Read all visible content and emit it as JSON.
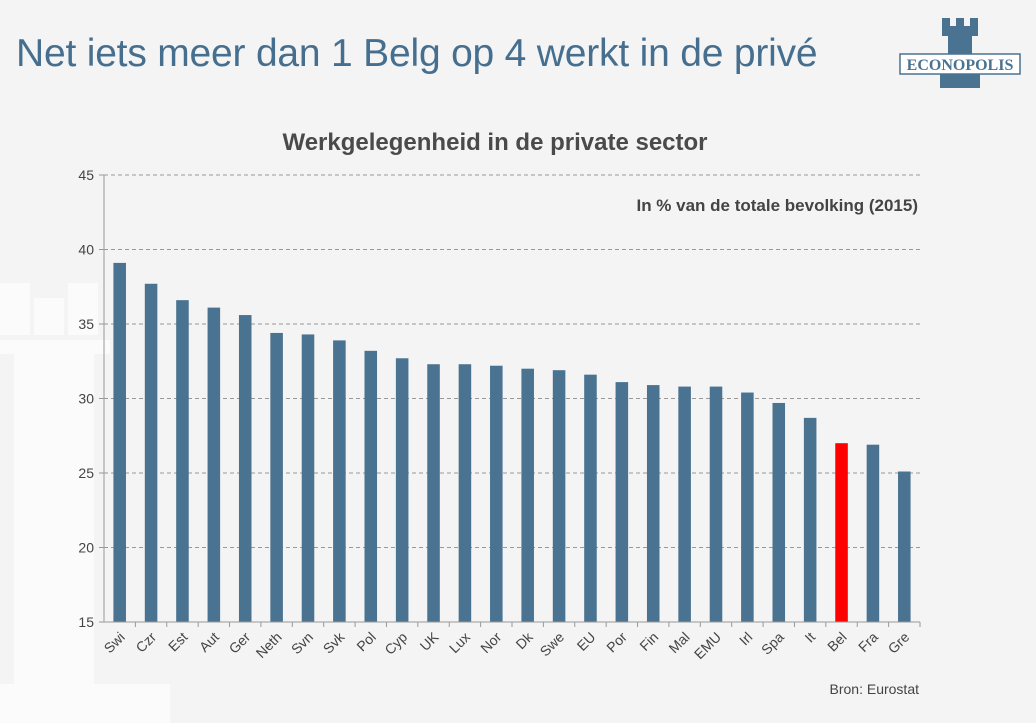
{
  "slide": {
    "title": "Net iets meer dan 1 Belg op 4 werkt in de privé",
    "logo_text": "ECONOPOLIS",
    "source": "Bron: Eurostat"
  },
  "colors": {
    "bar": "#4a7391",
    "highlight": "#ff0000",
    "title": "#466f8f",
    "grid": "#999999"
  },
  "chart_data": {
    "type": "bar",
    "title": "Werkgelegenheid in de private sector",
    "subtitle": "In % van de totale bevolking (2015)",
    "xlabel": "",
    "ylabel": "",
    "ylim": [
      15,
      45
    ],
    "yticks": [
      15,
      20,
      25,
      30,
      35,
      40,
      45
    ],
    "grid": true,
    "highlight_category": "Bel",
    "categories": [
      "Swi",
      "Czr",
      "Est",
      "Aut",
      "Ger",
      "Neth",
      "Svn",
      "Svk",
      "Pol",
      "Cyp",
      "UK",
      "Lux",
      "Nor",
      "Dk",
      "Swe",
      "EU",
      "Por",
      "Fin",
      "Mal",
      "EMU",
      "Irl",
      "Spa",
      "It",
      "Bel",
      "Fra",
      "Gre"
    ],
    "values": [
      39.1,
      37.7,
      36.6,
      36.1,
      35.6,
      34.4,
      34.3,
      33.9,
      33.2,
      32.7,
      32.3,
      32.3,
      32.2,
      32.0,
      31.9,
      31.6,
      31.1,
      30.9,
      30.8,
      30.8,
      30.4,
      29.7,
      28.7,
      27.0,
      26.9,
      25.1
    ]
  }
}
